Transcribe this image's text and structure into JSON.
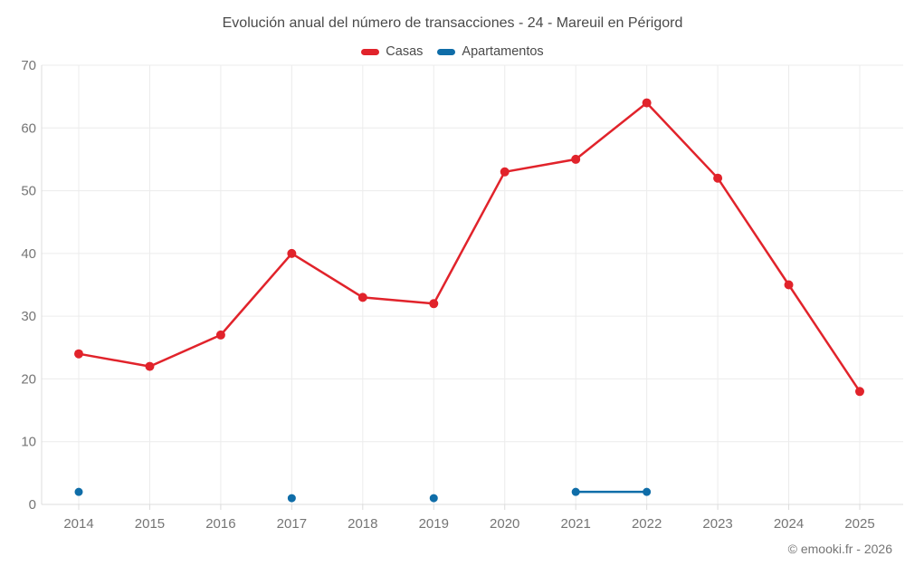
{
  "chart_data": {
    "type": "line",
    "title": "Evolución anual del número de transacciones - 24 - Mareuil en Périgord",
    "categories": [
      "2014",
      "2015",
      "2016",
      "2017",
      "2018",
      "2019",
      "2020",
      "2021",
      "2022",
      "2023",
      "2024",
      "2025"
    ],
    "series": [
      {
        "name": "Casas",
        "color": "#e1232b",
        "values": [
          24,
          22,
          27,
          40,
          33,
          32,
          53,
          55,
          64,
          52,
          35,
          18
        ]
      },
      {
        "name": "Apartamentos",
        "color": "#0f6da8",
        "values": [
          2,
          null,
          null,
          1,
          null,
          1,
          null,
          2,
          2,
          null,
          null,
          null
        ]
      }
    ],
    "ylim": [
      0,
      70
    ],
    "yticks": [
      0,
      10,
      20,
      30,
      40,
      50,
      60,
      70
    ],
    "grid": true,
    "legend_position": "top",
    "colors": {
      "grid_line": "#ececec",
      "axis_line": "#dcdcdc",
      "tick_label": "#757575",
      "title_text": "#4a4a4a"
    }
  },
  "footer": {
    "copyright": "© emooki.fr - 2026"
  }
}
